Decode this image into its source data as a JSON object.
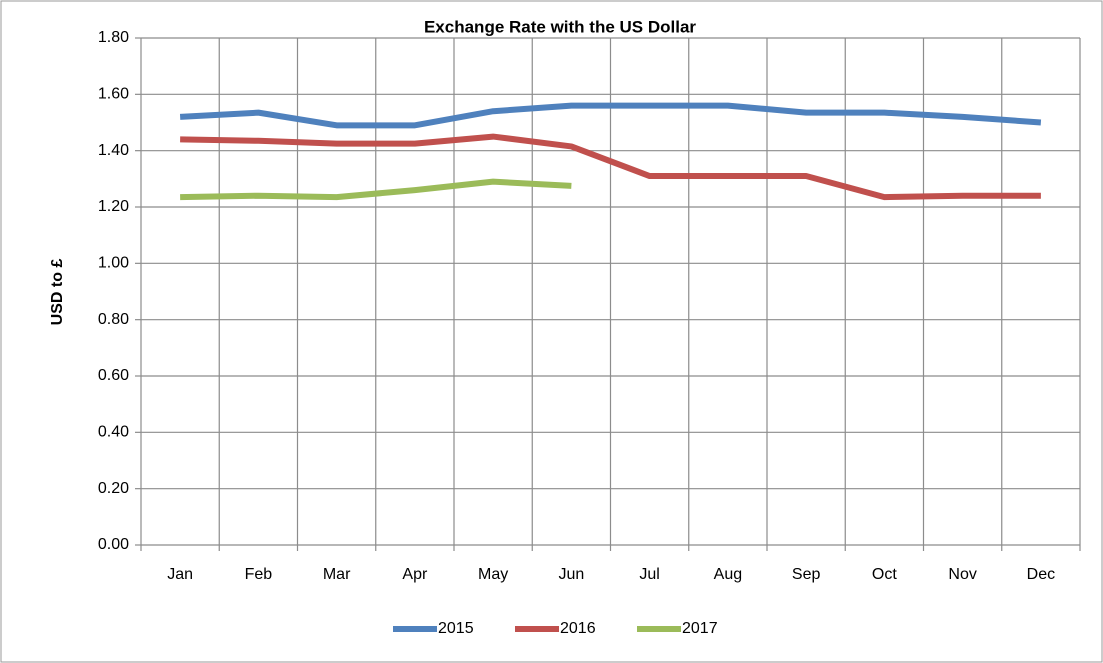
{
  "chart_data": {
    "type": "line",
    "title": "Exchange Rate with the US Dollar",
    "y_label": "USD to £",
    "categories": [
      "Jan",
      "Feb",
      "Mar",
      "Apr",
      "May",
      "Jun",
      "Jul",
      "Aug",
      "Sep",
      "Oct",
      "Nov",
      "Dec"
    ],
    "series": [
      {
        "name": "2015",
        "color": "#4f81bd",
        "values": [
          1.52,
          1.535,
          1.49,
          1.49,
          1.54,
          1.56,
          1.56,
          1.56,
          1.535,
          1.535,
          1.52,
          1.5
        ]
      },
      {
        "name": "2016",
        "color": "#c0504d",
        "values": [
          1.44,
          1.435,
          1.425,
          1.425,
          1.45,
          1.415,
          1.31,
          1.31,
          1.31,
          1.235,
          1.24,
          1.24
        ]
      },
      {
        "name": "2017",
        "color": "#9bbb59",
        "values": [
          1.235,
          1.24,
          1.235,
          1.26,
          1.29,
          1.275,
          null,
          null,
          null,
          null,
          null,
          null
        ]
      }
    ],
    "ylim": [
      0,
      1.8
    ],
    "yticks": [
      {
        "value": 0,
        "label": "0.00"
      },
      {
        "value": 0.2,
        "label": "0.20"
      },
      {
        "value": 0.4,
        "label": "0.40"
      },
      {
        "value": 0.6,
        "label": "0.60"
      },
      {
        "value": 0.8,
        "label": "0.80"
      },
      {
        "value": 1,
        "label": "1.00"
      },
      {
        "value": 1.2,
        "label": "1.20"
      },
      {
        "value": 1.4,
        "label": "1.40"
      },
      {
        "value": 1.6,
        "label": "1.60"
      },
      {
        "value": 1.8,
        "label": "1.80"
      }
    ],
    "grid": true,
    "legend": "bottom"
  }
}
